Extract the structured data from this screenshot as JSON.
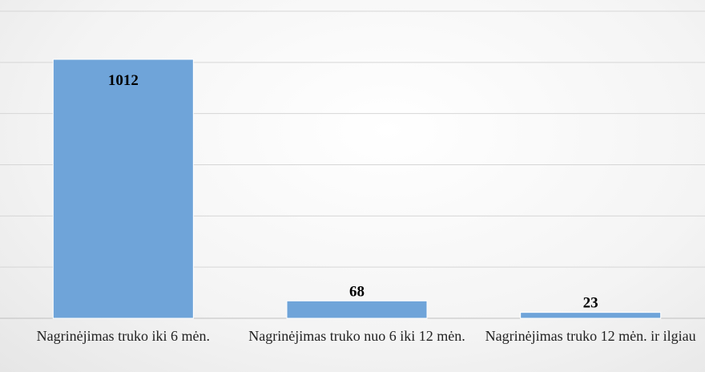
{
  "chart_data": {
    "type": "bar",
    "categories": [
      "Nagrinėjimas truko iki 6 mėn.",
      "Nagrinėjimas truko nuo 6 iki 12 mėn.",
      "Nagrinėjimas truko 12 mėn. ir ilgiau"
    ],
    "values": [
      1012,
      68,
      23
    ],
    "color": "#6fa4d9",
    "ylim": [
      0,
      1200
    ],
    "yticks": [
      0,
      200,
      400,
      600,
      800,
      1000,
      1200
    ],
    "grid": true
  }
}
